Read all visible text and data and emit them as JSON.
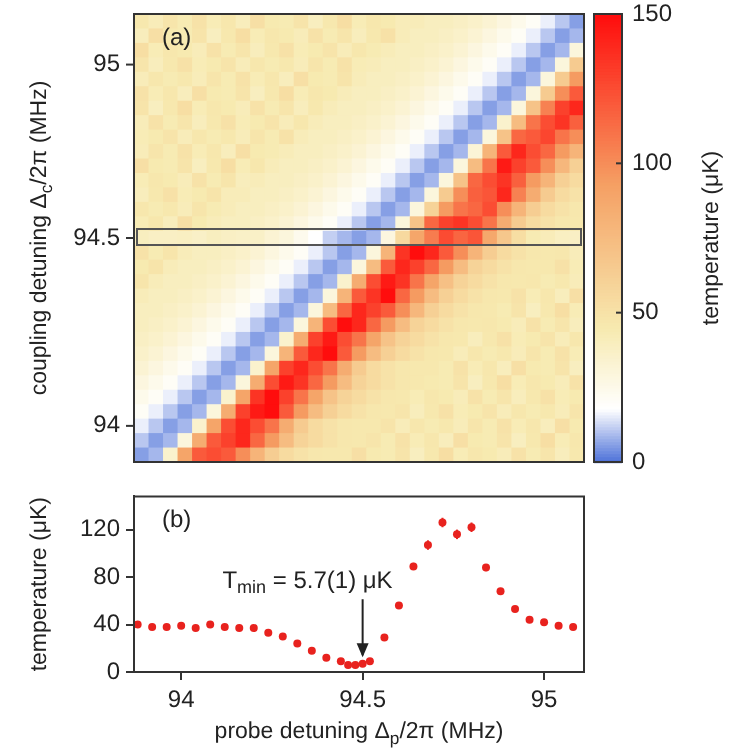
{
  "chart_data": [
    {
      "type": "heatmap",
      "ylabel": "coupling detuning Δ$_{c}$/2π (MHz)",
      "clabel": "temperature (μK)",
      "annotations": [
        "(a)"
      ],
      "categories": [
        null,
        null,
        null,
        null,
        null,
        null,
        null,
        null,
        null,
        null,
        null,
        null,
        null,
        null,
        null,
        null,
        null,
        null,
        null,
        null,
        null,
        null,
        null,
        null,
        null,
        null,
        null,
        null,
        null,
        null,
        null
      ],
      "y_categories": [
        null,
        null,
        null,
        "95",
        null,
        null,
        null,
        null,
        null,
        null,
        null,
        null,
        null,
        null,
        null,
        "94.5",
        null,
        null,
        null,
        null,
        null,
        null,
        null,
        null,
        null,
        null,
        null,
        null,
        "94",
        null,
        null
      ],
      "tick_labels": "y",
      "clim": [
        0,
        150
      ],
      "cticks": [
        0,
        50,
        100,
        150
      ],
      "cells": [
        [
          46,
          42,
          48,
          44,
          50,
          43,
          47,
          41,
          52,
          45,
          44,
          49,
          40,
          46,
          53,
          43,
          47,
          45,
          42,
          42,
          40,
          40,
          38,
          36,
          33,
          29,
          25,
          21,
          16,
          11,
          6
        ],
        [
          41,
          52,
          45,
          44,
          49,
          40,
          46,
          53,
          43,
          47,
          45,
          42,
          50,
          44,
          48,
          41,
          46,
          51,
          42,
          40,
          40,
          38,
          36,
          33,
          29,
          25,
          21,
          16,
          11,
          6,
          9
        ],
        [
          53,
          43,
          47,
          45,
          42,
          50,
          44,
          48,
          41,
          46,
          51,
          43,
          45,
          49,
          42,
          47,
          44,
          42,
          40,
          40,
          38,
          36,
          33,
          29,
          25,
          21,
          16,
          11,
          6,
          9,
          30
        ],
        [
          48,
          41,
          46,
          51,
          43,
          45,
          49,
          42,
          47,
          44,
          46,
          42,
          48,
          44,
          50,
          43,
          42,
          40,
          40,
          38,
          36,
          33,
          29,
          25,
          21,
          16,
          11,
          6,
          9,
          30,
          65
        ],
        [
          42,
          47,
          44,
          46,
          42,
          48,
          44,
          50,
          43,
          47,
          41,
          52,
          45,
          44,
          49,
          42,
          40,
          40,
          38,
          36,
          33,
          29,
          25,
          21,
          16,
          11,
          6,
          9,
          30,
          65,
          95
        ],
        [
          50,
          43,
          47,
          41,
          52,
          45,
          44,
          49,
          40,
          46,
          53,
          43,
          47,
          45,
          42,
          40,
          40,
          38,
          36,
          33,
          29,
          25,
          21,
          16,
          11,
          6,
          9,
          30,
          65,
          100,
          120
        ],
        [
          49,
          40,
          46,
          53,
          43,
          47,
          45,
          42,
          50,
          44,
          48,
          41,
          46,
          42,
          40,
          40,
          38,
          36,
          33,
          29,
          25,
          21,
          16,
          11,
          6,
          9,
          30,
          70,
          105,
          130,
          140
        ],
        [
          42,
          50,
          44,
          48,
          41,
          46,
          51,
          43,
          45,
          49,
          42,
          47,
          42,
          40,
          40,
          38,
          36,
          33,
          29,
          25,
          21,
          16,
          11,
          6,
          9,
          35,
          75,
          110,
          125,
          135,
          118
        ],
        [
          43,
          45,
          49,
          42,
          47,
          44,
          46,
          42,
          48,
          44,
          50,
          42,
          40,
          40,
          38,
          36,
          33,
          29,
          25,
          21,
          16,
          11,
          6,
          9,
          30,
          70,
          115,
          120,
          128,
          110,
          100
        ],
        [
          42,
          48,
          44,
          50,
          43,
          47,
          41,
          52,
          45,
          44,
          42,
          40,
          40,
          38,
          36,
          33,
          29,
          25,
          21,
          16,
          11,
          6,
          9,
          32,
          80,
          120,
          140,
          125,
          115,
          95,
          80
        ],
        [
          52,
          45,
          44,
          49,
          40,
          46,
          53,
          43,
          47,
          42,
          40,
          40,
          38,
          36,
          33,
          29,
          25,
          21,
          16,
          11,
          6,
          9,
          30,
          75,
          110,
          145,
          130,
          120,
          100,
          78,
          62
        ],
        [
          43,
          47,
          45,
          42,
          50,
          44,
          48,
          41,
          42,
          40,
          40,
          38,
          36,
          33,
          29,
          25,
          21,
          16,
          11,
          6,
          9,
          30,
          70,
          115,
          125,
          135,
          118,
          95,
          80,
          62,
          55
        ],
        [
          41,
          46,
          51,
          43,
          45,
          49,
          42,
          42,
          40,
          40,
          38,
          36,
          33,
          29,
          25,
          21,
          16,
          11,
          6,
          9,
          30,
          65,
          100,
          118,
          122,
          140,
          105,
          85,
          65,
          55,
          50
        ],
        [
          47,
          44,
          46,
          42,
          48,
          44,
          42,
          40,
          40,
          38,
          36,
          33,
          29,
          25,
          21,
          16,
          11,
          6,
          9,
          30,
          60,
          95,
          110,
          115,
          125,
          100,
          80,
          64,
          55,
          50,
          47
        ],
        [
          43,
          47,
          41,
          52,
          45,
          42,
          40,
          40,
          38,
          36,
          33,
          29,
          25,
          21,
          16,
          11,
          6,
          9,
          30,
          70,
          115,
          130,
          135,
          125,
          110,
          85,
          65,
          55,
          50,
          47,
          46
        ],
        [
          40,
          38,
          38,
          39,
          37,
          40,
          38,
          37,
          37,
          33,
          30,
          24,
          18,
          12,
          9,
          6,
          9,
          29,
          56,
          89,
          107,
          126,
          116,
          122,
          88,
          68,
          53,
          44,
          42,
          39,
          38
        ],
        [
          50,
          44,
          48,
          42,
          40,
          40,
          38,
          36,
          33,
          29,
          25,
          21,
          16,
          11,
          6,
          9,
          30,
          80,
          135,
          150,
          140,
          120,
          100,
          80,
          64,
          55,
          50,
          47,
          46,
          47,
          42
        ],
        [
          45,
          49,
          42,
          40,
          40,
          38,
          36,
          33,
          29,
          25,
          21,
          16,
          11,
          6,
          9,
          30,
          75,
          120,
          140,
          130,
          115,
          95,
          75,
          60,
          55,
          50,
          47,
          46,
          46,
          51,
          43
        ],
        [
          48,
          42,
          40,
          40,
          38,
          36,
          33,
          29,
          25,
          21,
          16,
          11,
          6,
          9,
          35,
          85,
          125,
          145,
          135,
          110,
          90,
          72,
          60,
          55,
          50,
          47,
          46,
          47,
          44,
          46,
          42
        ],
        [
          42,
          40,
          40,
          38,
          36,
          33,
          29,
          25,
          21,
          16,
          11,
          6,
          9,
          30,
          80,
          120,
          135,
          150,
          115,
          95,
          75,
          62,
          55,
          50,
          47,
          46,
          50,
          43,
          47,
          41,
          52
        ],
        [
          40,
          40,
          38,
          36,
          33,
          29,
          25,
          21,
          16,
          11,
          6,
          9,
          30,
          75,
          115,
          140,
          130,
          120,
          100,
          78,
          62,
          55,
          50,
          47,
          46,
          44,
          49,
          40,
          46,
          53,
          43
        ],
        [
          40,
          38,
          36,
          33,
          29,
          25,
          21,
          16,
          11,
          6,
          9,
          30,
          80,
          125,
          150,
          140,
          115,
          95,
          75,
          60,
          55,
          50,
          47,
          46,
          47,
          45,
          42,
          50,
          44,
          48,
          41
        ],
        [
          38,
          36,
          33,
          29,
          25,
          21,
          16,
          11,
          6,
          9,
          35,
          85,
          130,
          145,
          125,
          110,
          90,
          70,
          60,
          55,
          50,
          47,
          46,
          41,
          46,
          51,
          43,
          45,
          49,
          42,
          47
        ],
        [
          36,
          33,
          29,
          25,
          21,
          16,
          11,
          6,
          9,
          30,
          80,
          120,
          140,
          150,
          120,
          95,
          75,
          62,
          55,
          50,
          47,
          46,
          42,
          47,
          44,
          46,
          42,
          48,
          44,
          50,
          43
        ],
        [
          33,
          29,
          25,
          21,
          16,
          11,
          6,
          9,
          35,
          90,
          130,
          140,
          125,
          110,
          85,
          65,
          55,
          50,
          47,
          46,
          46,
          44,
          50,
          43,
          47,
          41,
          52,
          45,
          44,
          49,
          40
        ],
        [
          29,
          25,
          21,
          16,
          11,
          6,
          9,
          30,
          85,
          125,
          145,
          135,
          115,
          95,
          75,
          60,
          55,
          50,
          47,
          46,
          45,
          44,
          49,
          40,
          46,
          53,
          43,
          47,
          45,
          42,
          50
        ],
        [
          25,
          21,
          16,
          11,
          6,
          9,
          35,
          90,
          135,
          150,
          130,
          110,
          90,
          70,
          60,
          55,
          50,
          47,
          46,
          43,
          47,
          45,
          42,
          50,
          44,
          48,
          41,
          46,
          51,
          43,
          45
        ],
        [
          21,
          16,
          11,
          6,
          9,
          30,
          85,
          130,
          145,
          150,
          120,
          95,
          75,
          62,
          55,
          50,
          47,
          46,
          48,
          41,
          46,
          51,
          43,
          45,
          49,
          42,
          47,
          44,
          46,
          42,
          48
        ],
        [
          16,
          11,
          6,
          9,
          35,
          90,
          125,
          140,
          125,
          110,
          85,
          65,
          55,
          50,
          47,
          46,
          46,
          49,
          42,
          47,
          44,
          46,
          42,
          48,
          44,
          50,
          43,
          47,
          41,
          52,
          45
        ],
        [
          11,
          6,
          9,
          30,
          85,
          120,
          130,
          140,
          115,
          95,
          75,
          60,
          55,
          50,
          47,
          46,
          48,
          44,
          50,
          43,
          47,
          41,
          52,
          45,
          44,
          49,
          40,
          46,
          53,
          43,
          47
        ],
        [
          6,
          9,
          35,
          90,
          120,
          125,
          120,
          100,
          80,
          64,
          55,
          50,
          47,
          46,
          46,
          52,
          45,
          44,
          49,
          40,
          46,
          53,
          43,
          47,
          45,
          42,
          50,
          44,
          48,
          41,
          46
        ]
      ]
    },
    {
      "type": "scatter",
      "xlabel": "probe detuning Δ$_{p}$/2π (MHz)",
      "ylabel": "temperature (μK)",
      "color": "#e8221e",
      "marker": "circle",
      "annotations": [
        "(b)",
        {
          "text": "T$_{min}$ = 5.7(1) μK",
          "x": 94.5,
          "y": 5.7
        }
      ],
      "x": [
        93.88,
        93.92,
        93.96,
        94.0,
        94.04,
        94.08,
        94.12,
        94.16,
        94.2,
        94.24,
        94.28,
        94.32,
        94.36,
        94.4,
        94.44,
        94.46,
        94.48,
        94.5,
        94.52,
        94.56,
        94.6,
        94.64,
        94.68,
        94.72,
        94.76,
        94.8,
        94.84,
        94.88,
        94.92,
        94.96,
        95.0,
        95.04,
        95.08
      ],
      "values": [
        40,
        38,
        38,
        39,
        37,
        40,
        38,
        37,
        37,
        33,
        30,
        24,
        18,
        12,
        9,
        6,
        6,
        7,
        9,
        29,
        56,
        89,
        107,
        126,
        116,
        122,
        88,
        68,
        53,
        44,
        42,
        39,
        38
      ],
      "errors": [
        null,
        null,
        null,
        null,
        null,
        null,
        null,
        null,
        null,
        null,
        null,
        null,
        null,
        null,
        null,
        null,
        null,
        null,
        null,
        null,
        null,
        3,
        4,
        4,
        4,
        4,
        3,
        null,
        null,
        null,
        null,
        null,
        null
      ],
      "xlim": [
        93.87,
        95.11
      ],
      "xticks": [
        94,
        94.5,
        95
      ],
      "ylim": [
        0,
        148
      ],
      "yticks": [
        0,
        40,
        80,
        120
      ]
    }
  ]
}
